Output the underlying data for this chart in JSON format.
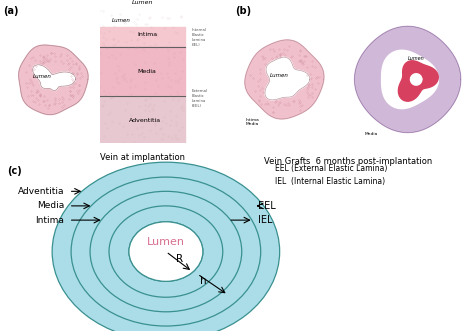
{
  "panel_a_label": "(a)",
  "panel_b_label": "(b)",
  "panel_c_label": "(c)",
  "title_a": "Vein at implantation",
  "title_b": "Vein Grafts  6 months post-implantation",
  "legend_text": "EEL (External Elastic Lamina)\nIEL  (Internal Elastic Lamina)",
  "layers_left": [
    "Adventitia",
    "Media",
    "Intima"
  ],
  "layers_right": [
    "EEL",
    "IEL"
  ],
  "lumen_label": "Lumen",
  "R_label": "R",
  "h_label": "h",
  "bg_color": "#ffffff",
  "ellipse_fill": "#aadde8",
  "ellipse_edge": "#3a9090",
  "lumen_color": "#d87090",
  "vein_pink": "#f0c0c8",
  "vein_edge": "#c09098"
}
